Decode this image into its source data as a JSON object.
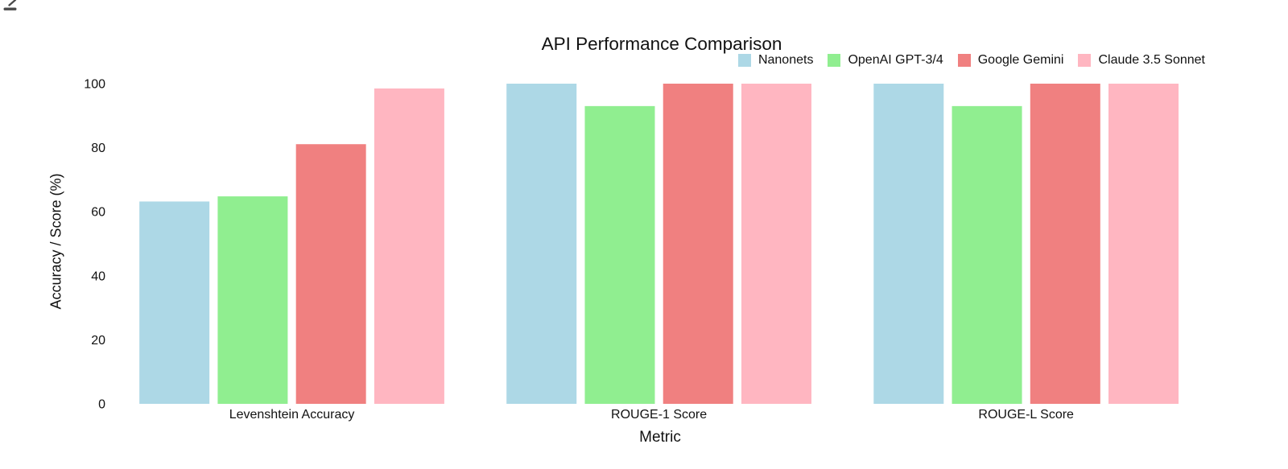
{
  "page": {
    "background": "#ffffff"
  },
  "corner_icon": {
    "name": "download-icon",
    "color": "#4a4a4a",
    "note": "partially cropped at top-left corner"
  },
  "chart_data": {
    "type": "bar",
    "title": "API Performance Comparison",
    "xlabel": "Metric",
    "ylabel": "Accuracy / Score (%)",
    "categories": [
      "Levenshtein Accuracy",
      "ROUGE-1 Score",
      "ROUGE-L Score"
    ],
    "series": [
      {
        "name": "Nanonets",
        "color": "#ADD8E6",
        "values": [
          63.2,
          100,
          100
        ]
      },
      {
        "name": "OpenAI GPT-3/4",
        "color": "#90EE90",
        "values": [
          64.8,
          93,
          93
        ]
      },
      {
        "name": "Google Gemini",
        "color": "#F08080",
        "values": [
          81.1,
          100,
          100
        ]
      },
      {
        "name": "Claude 3.5 Sonnet",
        "color": "#FFB6C1",
        "values": [
          98.5,
          100,
          100
        ]
      }
    ],
    "ylim": [
      0,
      100
    ],
    "yticks": [
      0,
      20,
      40,
      60,
      80,
      100
    ],
    "grid": false,
    "axis_spines": false,
    "legend_position": "top-right"
  }
}
